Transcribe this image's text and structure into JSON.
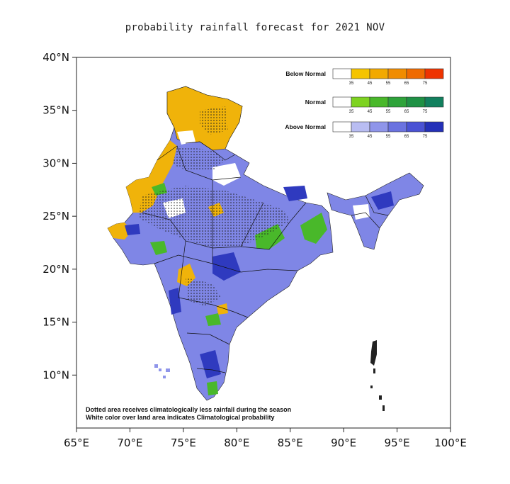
{
  "title": "probability rainfall forecast for 2021 NOV",
  "axes": {
    "y_ticks": [
      "40°N",
      "35°N",
      "30°N",
      "25°N",
      "20°N",
      "15°N",
      "10°N"
    ],
    "x_ticks": [
      "65°E",
      "70°E",
      "75°E",
      "80°E",
      "85°E",
      "90°E",
      "95°E",
      "100°E"
    ],
    "lon_range": [
      65,
      100
    ],
    "lat_range": [
      5,
      40
    ]
  },
  "legend": {
    "ticks": [
      "35",
      "45",
      "55",
      "65",
      "75"
    ],
    "categories": [
      {
        "label": "Below Normal",
        "colors": [
          "#ffffff",
          "#f5c400",
          "#f2a900",
          "#f08c00",
          "#ef6a00",
          "#ee3300"
        ]
      },
      {
        "label": "Normal",
        "colors": [
          "#ffffff",
          "#7ed321",
          "#49b82a",
          "#2ea33a",
          "#1f9145",
          "#12805e"
        ]
      },
      {
        "label": "Above Normal",
        "colors": [
          "#ffffff",
          "#b9bdf2",
          "#8f95ea",
          "#6a72e0",
          "#4a52d4",
          "#2430b8"
        ]
      }
    ]
  },
  "notes": [
    "Dotted area receives climatologically less rainfall during the season",
    "White color over land area indicates Climatological probability"
  ],
  "colors": {
    "below_normal": "#f2a900",
    "normal": "#49b82a",
    "above_normal": "#6a72e0",
    "above_normal_strong": "#2430b8"
  }
}
